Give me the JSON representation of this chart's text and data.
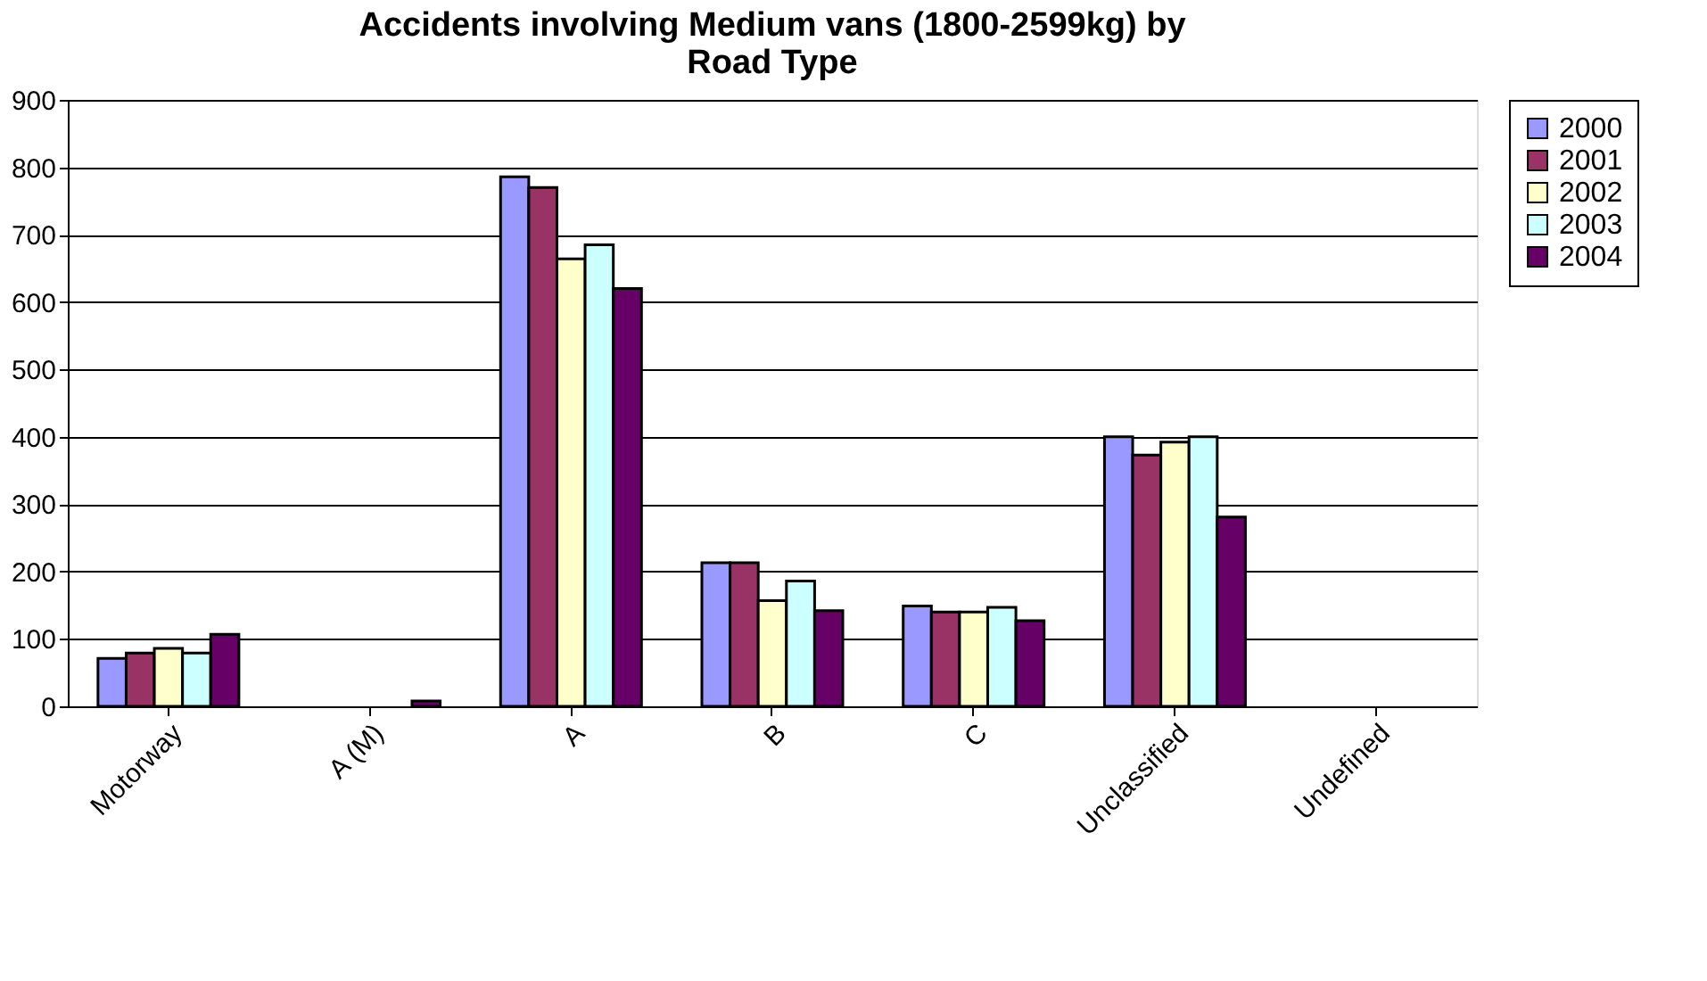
{
  "chart_data": {
    "type": "bar",
    "title": "Accidents involving Medium vans (1800-2599kg) by Road Type",
    "categories": [
      "Motorway",
      "A (M)",
      "A",
      "B",
      "C",
      "Unclassified",
      "Undefined"
    ],
    "series": [
      {
        "name": "2000",
        "color": "#9999ff",
        "values": [
          71,
          0,
          786,
          213,
          149,
          400,
          0
        ]
      },
      {
        "name": "2001",
        "color": "#993366",
        "values": [
          79,
          0,
          770,
          213,
          140,
          373,
          0
        ]
      },
      {
        "name": "2002",
        "color": "#ffffcc",
        "values": [
          86,
          0,
          664,
          157,
          140,
          392,
          0
        ]
      },
      {
        "name": "2003",
        "color": "#ccffff",
        "values": [
          79,
          0,
          685,
          186,
          147,
          400,
          0
        ]
      },
      {
        "name": "2004",
        "color": "#660066",
        "values": [
          107,
          8,
          620,
          142,
          127,
          281,
          0
        ]
      }
    ],
    "ylim": [
      0,
      900
    ],
    "yticks": [
      0,
      100,
      200,
      300,
      400,
      500,
      600,
      700,
      800,
      900
    ],
    "grid": "y",
    "legend": "right"
  }
}
